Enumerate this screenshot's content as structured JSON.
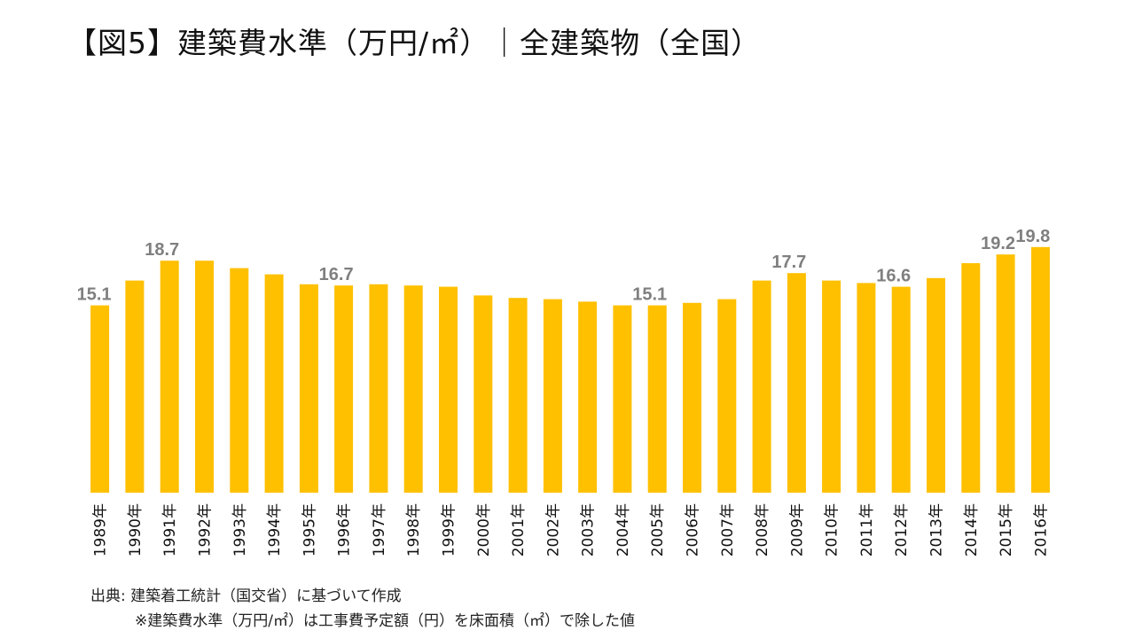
{
  "title": "【図5】建築費水準（万円/㎡）｜全建築物（全国）",
  "source": "出典: 建築着工統計（国交省）に基づいて作成",
  "note": "※建築費水準（万円/㎡）は工事費予定額（円）を床面積（㎡）で除した値",
  "colors": {
    "bar": "#FFC000",
    "label": "#7F7F7F",
    "axis_text": "#111111"
  },
  "chart_data": {
    "type": "bar",
    "title": "【図5】建築費水準（万円/㎡）｜全建築物（全国）",
    "xlabel": "",
    "ylabel": "",
    "ylim": [
      0,
      21
    ],
    "grid": false,
    "legend": "none",
    "categories": [
      "1989年",
      "1990年",
      "1991年",
      "1992年",
      "1993年",
      "1994年",
      "1995年",
      "1996年",
      "1997年",
      "1998年",
      "1999年",
      "2000年",
      "2001年",
      "2002年",
      "2003年",
      "2004年",
      "2005年",
      "2006年",
      "2007年",
      "2008年",
      "2009年",
      "2010年",
      "2011年",
      "2012年",
      "2013年",
      "2014年",
      "2015年",
      "2016年"
    ],
    "values": [
      15.1,
      17.1,
      18.7,
      18.7,
      18.1,
      17.6,
      16.8,
      16.7,
      16.8,
      16.7,
      16.6,
      15.9,
      15.7,
      15.6,
      15.4,
      15.1,
      15.1,
      15.3,
      15.6,
      17.1,
      17.7,
      17.1,
      16.9,
      16.6,
      17.3,
      18.5,
      19.2,
      19.8
    ],
    "data_labels": [
      {
        "category": "1989年",
        "text": "15.1"
      },
      {
        "category": "1991年",
        "text": "18.7"
      },
      {
        "category": "1996年",
        "text": "16.7"
      },
      {
        "category": "2005年",
        "text": "15.1"
      },
      {
        "category": "2009年",
        "text": "17.7"
      },
      {
        "category": "2012年",
        "text": "16.6"
      },
      {
        "category": "2015年",
        "text": "19.2"
      },
      {
        "category": "2016年",
        "text": "19.8"
      }
    ]
  }
}
